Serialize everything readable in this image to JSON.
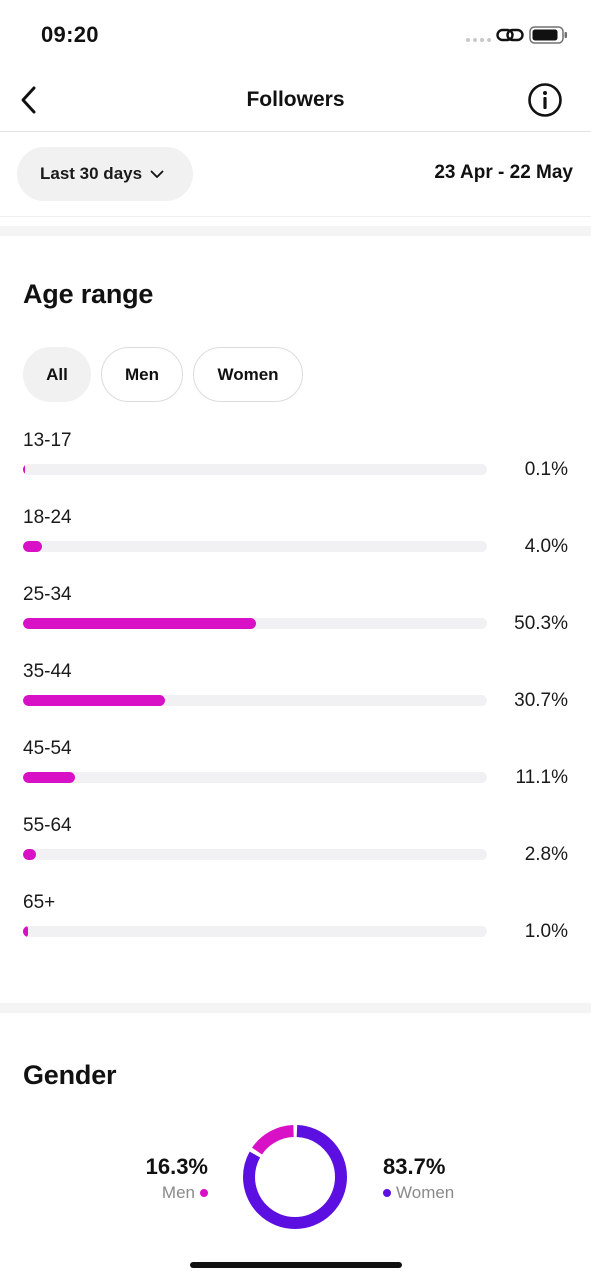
{
  "status_bar": {
    "time": "09:20"
  },
  "nav": {
    "title": "Followers"
  },
  "filter": {
    "range_label": "Last 30 days",
    "date_range": "23 Apr - 22 May"
  },
  "age_section": {
    "title": "Age range",
    "chips": [
      "All",
      "Men",
      "Women"
    ],
    "active_chip": "All",
    "rows": [
      {
        "label": "13-17",
        "value": "0.1%",
        "fraction": 0.001
      },
      {
        "label": "18-24",
        "value": "4.0%",
        "fraction": 0.04
      },
      {
        "label": "25-34",
        "value": "50.3%",
        "fraction": 0.503
      },
      {
        "label": "35-44",
        "value": "30.7%",
        "fraction": 0.307
      },
      {
        "label": "45-54",
        "value": "11.1%",
        "fraction": 0.111
      },
      {
        "label": "55-64",
        "value": "2.8%",
        "fraction": 0.028
      },
      {
        "label": "65+",
        "value": "1.0%",
        "fraction": 0.01
      }
    ]
  },
  "gender_section": {
    "title": "Gender",
    "men": {
      "percent": "16.3%",
      "label": "Men",
      "fraction": 0.163
    },
    "women": {
      "percent": "83.7%",
      "label": "Women",
      "fraction": 0.837
    }
  },
  "colors": {
    "accent_magenta": "#d811c6",
    "accent_purple": "#5b0fe0",
    "track": "#f1f1f3"
  },
  "icons": {
    "back": "chevron-left-icon",
    "info": "info-circle-icon",
    "dropdown": "chevron-down-icon",
    "link": "link-icon",
    "battery": "battery-icon"
  }
}
